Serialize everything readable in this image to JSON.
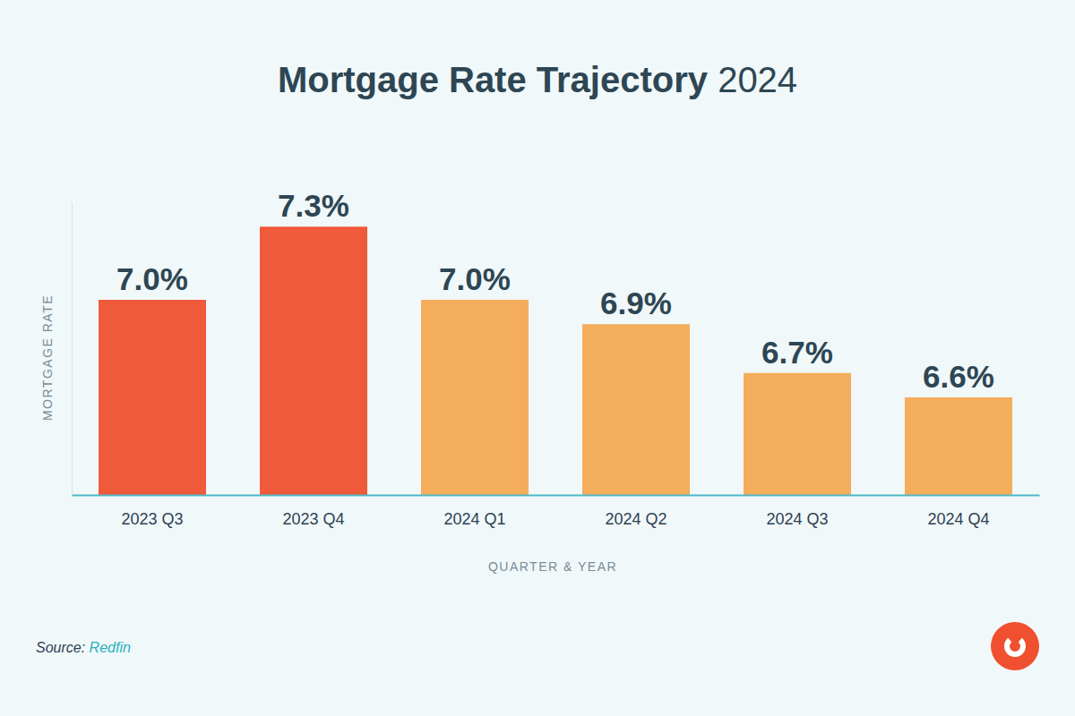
{
  "chart_data": {
    "type": "bar",
    "title": "Mortgage Rate Trajectory 2024",
    "x_label": "QUARTER & YEAR",
    "y_label": "MORTGAGE RATE",
    "source": "Source: Redfin",
    "categories": [
      "2023 Q3",
      "2023 Q4",
      "2024 Q1",
      "2024 Q2",
      "2024 Q3",
      "2024 Q4"
    ],
    "values": [
      7.0,
      7.3,
      7.0,
      6.9,
      6.7,
      6.6
    ],
    "value_labels": [
      "7.0%",
      "7.3%",
      "7.0%",
      "6.9%",
      "6.7%",
      "6.6%"
    ],
    "colors": [
      "#ef5a3a",
      "#ef5a3a",
      "#f4ad5b",
      "#f4ad5b",
      "#f4ad5b",
      "#f4ad5b"
    ],
    "ylim": [
      6.2,
      7.4
    ],
    "yticks": [],
    "grid": false,
    "data_labels": true,
    "tick_labels": "x"
  }
}
